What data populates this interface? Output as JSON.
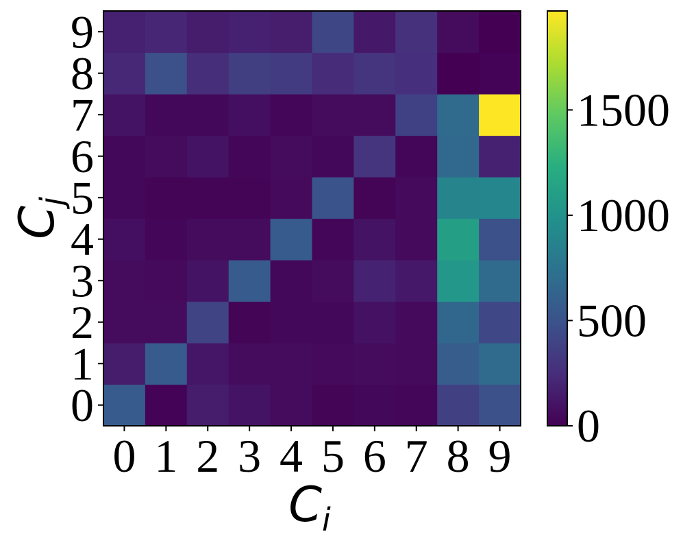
{
  "chart_data": {
    "type": "heatmap",
    "title": "",
    "x_categories": [
      "0",
      "1",
      "2",
      "3",
      "4",
      "5",
      "6",
      "7",
      "8",
      "9"
    ],
    "y_categories": [
      "0",
      "1",
      "2",
      "3",
      "4",
      "5",
      "6",
      "7",
      "8",
      "9"
    ],
    "xlabel": {
      "base": "C",
      "sub": "i"
    },
    "ylabel": {
      "base": "C",
      "sub": "j"
    },
    "colormap": "viridis",
    "colorbar": {
      "min": 0,
      "max": 1970,
      "ticks": [
        0,
        500,
        1000,
        1500
      ]
    },
    "values": [
      [
        560,
        10,
        150,
        100,
        60,
        20,
        40,
        30,
        370,
        480
      ],
      [
        150,
        560,
        120,
        60,
        60,
        50,
        60,
        50,
        580,
        680
      ],
      [
        60,
        60,
        400,
        20,
        40,
        40,
        90,
        50,
        650,
        420
      ],
      [
        60,
        50,
        100,
        560,
        40,
        60,
        190,
        130,
        1040,
        680
      ],
      [
        80,
        30,
        60,
        60,
        560,
        30,
        100,
        50,
        1100,
        480
      ],
      [
        40,
        20,
        20,
        20,
        50,
        500,
        20,
        50,
        880,
        900
      ],
      [
        40,
        60,
        100,
        30,
        60,
        40,
        290,
        30,
        670,
        180
      ],
      [
        100,
        40,
        40,
        80,
        30,
        60,
        60,
        380,
        680,
        1970
      ],
      [
        220,
        480,
        250,
        360,
        340,
        240,
        300,
        260,
        0,
        10
      ],
      [
        180,
        210,
        150,
        180,
        160,
        410,
        130,
        270,
        60,
        0
      ]
    ]
  }
}
